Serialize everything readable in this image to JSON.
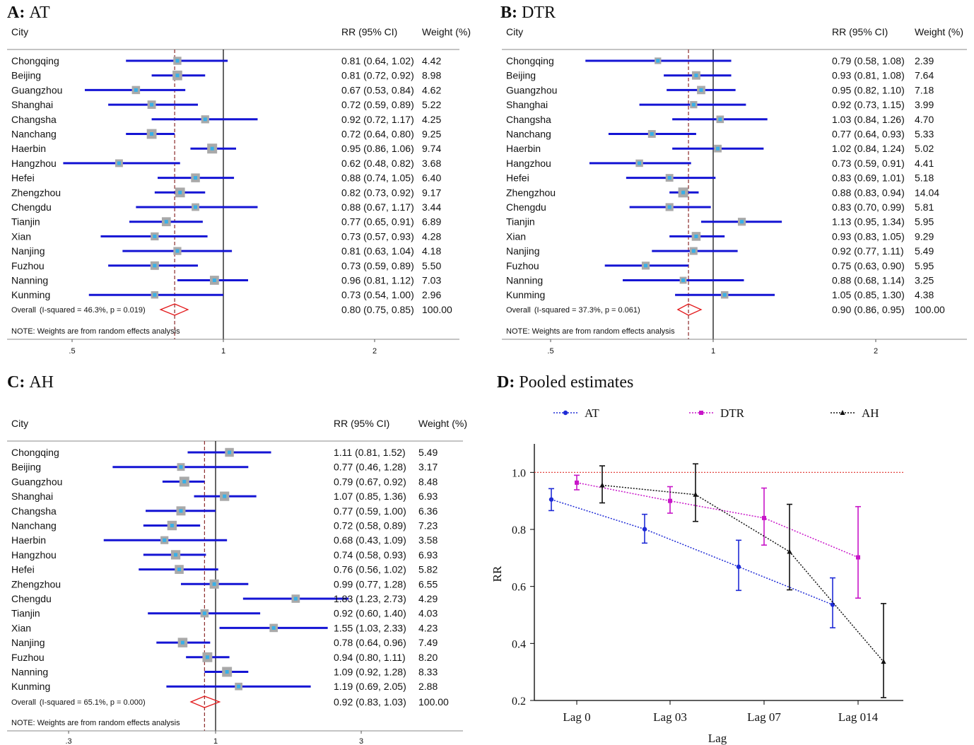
{
  "panels": [
    {
      "id": "A",
      "panel_letter": "A:",
      "panel_title": "AT",
      "col_city": "City",
      "col_rr": "RR (95% CI)",
      "col_weight": "Weight (%)",
      "axis_ticks": [
        {
          "value": 0.5,
          "label": ".5"
        },
        {
          "value": 1,
          "label": "1"
        },
        {
          "value": 2,
          "label": "2"
        }
      ],
      "note": "NOTE: Weights are from random effects analysis",
      "overall_label": "Overall",
      "overall_stats": "(I-squared = 46.3%, p = 0.019)",
      "overall_rr_text": "0.80 (0.75, 0.85)",
      "overall_weight": "100.00",
      "overall": {
        "rr": 0.8,
        "lo": 0.75,
        "hi": 0.85
      },
      "rows": [
        {
          "city": "Chongqing",
          "rr": 0.81,
          "lo": 0.64,
          "hi": 1.02,
          "rr_text": "0.81 (0.64, 1.02)",
          "weight": "4.42"
        },
        {
          "city": "Beijing",
          "rr": 0.81,
          "lo": 0.72,
          "hi": 0.92,
          "rr_text": "0.81 (0.72, 0.92)",
          "weight": "8.98"
        },
        {
          "city": "Guangzhou",
          "rr": 0.67,
          "lo": 0.53,
          "hi": 0.84,
          "rr_text": "0.67 (0.53, 0.84)",
          "weight": "4.62"
        },
        {
          "city": "Shanghai",
          "rr": 0.72,
          "lo": 0.59,
          "hi": 0.89,
          "rr_text": "0.72 (0.59, 0.89)",
          "weight": "5.22"
        },
        {
          "city": "Changsha",
          "rr": 0.92,
          "lo": 0.72,
          "hi": 1.17,
          "rr_text": "0.92 (0.72, 1.17)",
          "weight": "4.25"
        },
        {
          "city": "Nanchang",
          "rr": 0.72,
          "lo": 0.64,
          "hi": 0.8,
          "rr_text": "0.72 (0.64, 0.80)",
          "weight": "9.25"
        },
        {
          "city": "Haerbin",
          "rr": 0.95,
          "lo": 0.86,
          "hi": 1.06,
          "rr_text": "0.95 (0.86, 1.06)",
          "weight": "9.74"
        },
        {
          "city": "Hangzhou",
          "rr": 0.62,
          "lo": 0.48,
          "hi": 0.82,
          "rr_text": "0.62 (0.48, 0.82)",
          "weight": "3.68"
        },
        {
          "city": "Hefei",
          "rr": 0.88,
          "lo": 0.74,
          "hi": 1.05,
          "rr_text": "0.88 (0.74, 1.05)",
          "weight": "6.40"
        },
        {
          "city": "Zhengzhou",
          "rr": 0.82,
          "lo": 0.73,
          "hi": 0.92,
          "rr_text": "0.82 (0.73, 0.92)",
          "weight": "9.17"
        },
        {
          "city": "Chengdu",
          "rr": 0.88,
          "lo": 0.67,
          "hi": 1.17,
          "rr_text": "0.88 (0.67, 1.17)",
          "weight": "3.44"
        },
        {
          "city": "Tianjin",
          "rr": 0.77,
          "lo": 0.65,
          "hi": 0.91,
          "rr_text": "0.77 (0.65, 0.91)",
          "weight": "6.89"
        },
        {
          "city": "Xian",
          "rr": 0.73,
          "lo": 0.57,
          "hi": 0.93,
          "rr_text": "0.73 (0.57, 0.93)",
          "weight": "4.28"
        },
        {
          "city": "Nanjing",
          "rr": 0.81,
          "lo": 0.63,
          "hi": 1.04,
          "rr_text": "0.81 (0.63, 1.04)",
          "weight": "4.18"
        },
        {
          "city": "Fuzhou",
          "rr": 0.73,
          "lo": 0.59,
          "hi": 0.89,
          "rr_text": "0.73 (0.59, 0.89)",
          "weight": "5.50"
        },
        {
          "city": "Nanning",
          "rr": 0.96,
          "lo": 0.81,
          "hi": 1.12,
          "rr_text": "0.96 (0.81, 1.12)",
          "weight": "7.03"
        },
        {
          "city": "Kunming",
          "rr": 0.73,
          "lo": 0.54,
          "hi": 1.0,
          "rr_text": "0.73 (0.54, 1.00)",
          "weight": "2.96"
        }
      ]
    },
    {
      "id": "B",
      "panel_letter": "B:",
      "panel_title": "DTR",
      "col_city": "City",
      "col_rr": "RR (95% CI)",
      "col_weight": "Weight (%)",
      "axis_ticks": [
        {
          "value": 0.5,
          "label": ".5"
        },
        {
          "value": 1,
          "label": "1"
        },
        {
          "value": 2,
          "label": "2"
        }
      ],
      "note": "NOTE: Weights are from random effects analysis",
      "overall_label": "Overall",
      "overall_stats": "(I-squared = 37.3%, p = 0.061)",
      "overall_rr_text": "0.90 (0.86, 0.95)",
      "overall_weight": "100.00",
      "overall": {
        "rr": 0.9,
        "lo": 0.86,
        "hi": 0.95
      },
      "rows": [
        {
          "city": "Chongqing",
          "rr": 0.79,
          "lo": 0.58,
          "hi": 1.08,
          "rr_text": "0.79 (0.58, 1.08)",
          "weight": "2.39"
        },
        {
          "city": "Beijing",
          "rr": 0.93,
          "lo": 0.81,
          "hi": 1.08,
          "rr_text": "0.93 (0.81, 1.08)",
          "weight": "7.64"
        },
        {
          "city": "Guangzhou",
          "rr": 0.95,
          "lo": 0.82,
          "hi": 1.1,
          "rr_text": "0.95 (0.82, 1.10)",
          "weight": "7.18"
        },
        {
          "city": "Shanghai",
          "rr": 0.92,
          "lo": 0.73,
          "hi": 1.15,
          "rr_text": "0.92 (0.73, 1.15)",
          "weight": "3.99"
        },
        {
          "city": "Changsha",
          "rr": 1.03,
          "lo": 0.84,
          "hi": 1.26,
          "rr_text": "1.03 (0.84, 1.26)",
          "weight": "4.70"
        },
        {
          "city": "Nanchang",
          "rr": 0.77,
          "lo": 0.64,
          "hi": 0.93,
          "rr_text": "0.77 (0.64, 0.93)",
          "weight": "5.33"
        },
        {
          "city": "Haerbin",
          "rr": 1.02,
          "lo": 0.84,
          "hi": 1.24,
          "rr_text": "1.02 (0.84, 1.24)",
          "weight": "5.02"
        },
        {
          "city": "Hangzhou",
          "rr": 0.73,
          "lo": 0.59,
          "hi": 0.91,
          "rr_text": "0.73 (0.59, 0.91)",
          "weight": "4.41"
        },
        {
          "city": "Hefei",
          "rr": 0.83,
          "lo": 0.69,
          "hi": 1.01,
          "rr_text": "0.83 (0.69, 1.01)",
          "weight": "5.18"
        },
        {
          "city": "Zhengzhou",
          "rr": 0.88,
          "lo": 0.83,
          "hi": 0.94,
          "rr_text": "0.88 (0.83, 0.94)",
          "weight": "14.04"
        },
        {
          "city": "Chengdu",
          "rr": 0.83,
          "lo": 0.7,
          "hi": 0.99,
          "rr_text": "0.83 (0.70, 0.99)",
          "weight": "5.81"
        },
        {
          "city": "Tianjin",
          "rr": 1.13,
          "lo": 0.95,
          "hi": 1.34,
          "rr_text": "1.13 (0.95, 1.34)",
          "weight": "5.95"
        },
        {
          "city": "Xian",
          "rr": 0.93,
          "lo": 0.83,
          "hi": 1.05,
          "rr_text": "0.93 (0.83, 1.05)",
          "weight": "9.29"
        },
        {
          "city": "Nanjing",
          "rr": 0.92,
          "lo": 0.77,
          "hi": 1.11,
          "rr_text": "0.92 (0.77, 1.11)",
          "weight": "5.49"
        },
        {
          "city": "Fuzhou",
          "rr": 0.75,
          "lo": 0.63,
          "hi": 0.9,
          "rr_text": "0.75 (0.63, 0.90)",
          "weight": "5.95"
        },
        {
          "city": "Nanning",
          "rr": 0.88,
          "lo": 0.68,
          "hi": 1.14,
          "rr_text": "0.88 (0.68, 1.14)",
          "weight": "3.25"
        },
        {
          "city": "Kunming",
          "rr": 1.05,
          "lo": 0.85,
          "hi": 1.3,
          "rr_text": "1.05 (0.85, 1.30)",
          "weight": "4.38"
        }
      ]
    },
    {
      "id": "C",
      "panel_letter": "C:",
      "panel_title": "AH",
      "col_city": "City",
      "col_rr": "RR (95% CI)",
      "col_weight": "Weight (%)",
      "axis_ticks": [
        {
          "value": 0.33,
          "label": ".3"
        },
        {
          "value": 1,
          "label": "1"
        },
        {
          "value": 3,
          "label": "3"
        }
      ],
      "note": "NOTE: Weights are from random effects analysis",
      "overall_label": "Overall",
      "overall_stats": "(I-squared = 65.1%, p = 0.000)",
      "overall_rr_text": "0.92 (0.83, 1.03)",
      "overall_weight": "100.00",
      "overall": {
        "rr": 0.92,
        "lo": 0.83,
        "hi": 1.03
      },
      "rows": [
        {
          "city": "Chongqing",
          "rr": 1.11,
          "lo": 0.81,
          "hi": 1.52,
          "rr_text": "1.11 (0.81, 1.52)",
          "weight": "5.49"
        },
        {
          "city": "Beijing",
          "rr": 0.77,
          "lo": 0.46,
          "hi": 1.28,
          "rr_text": "0.77 (0.46, 1.28)",
          "weight": "3.17"
        },
        {
          "city": "Guangzhou",
          "rr": 0.79,
          "lo": 0.67,
          "hi": 0.92,
          "rr_text": "0.79 (0.67, 0.92)",
          "weight": "8.48"
        },
        {
          "city": "Shanghai",
          "rr": 1.07,
          "lo": 0.85,
          "hi": 1.36,
          "rr_text": "1.07 (0.85, 1.36)",
          "weight": "6.93"
        },
        {
          "city": "Changsha",
          "rr": 0.77,
          "lo": 0.59,
          "hi": 1.0,
          "rr_text": "0.77 (0.59, 1.00)",
          "weight": "6.36"
        },
        {
          "city": "Nanchang",
          "rr": 0.72,
          "lo": 0.58,
          "hi": 0.89,
          "rr_text": "0.72 (0.58, 0.89)",
          "weight": "7.23"
        },
        {
          "city": "Haerbin",
          "rr": 0.68,
          "lo": 0.43,
          "hi": 1.09,
          "rr_text": "0.68 (0.43, 1.09)",
          "weight": "3.58"
        },
        {
          "city": "Hangzhou",
          "rr": 0.74,
          "lo": 0.58,
          "hi": 0.93,
          "rr_text": "0.74 (0.58, 0.93)",
          "weight": "6.93"
        },
        {
          "city": "Hefei",
          "rr": 0.76,
          "lo": 0.56,
          "hi": 1.02,
          "rr_text": "0.76 (0.56, 1.02)",
          "weight": "5.82"
        },
        {
          "city": "Zhengzhou",
          "rr": 0.99,
          "lo": 0.77,
          "hi": 1.28,
          "rr_text": "0.99 (0.77, 1.28)",
          "weight": "6.55"
        },
        {
          "city": "Chengdu",
          "rr": 1.83,
          "lo": 1.23,
          "hi": 2.73,
          "rr_text": "1.83 (1.23, 2.73)",
          "weight": "4.29"
        },
        {
          "city": "Tianjin",
          "rr": 0.92,
          "lo": 0.6,
          "hi": 1.4,
          "rr_text": "0.92 (0.60, 1.40)",
          "weight": "4.03"
        },
        {
          "city": "Xian",
          "rr": 1.55,
          "lo": 1.03,
          "hi": 2.33,
          "rr_text": "1.55 (1.03, 2.33)",
          "weight": "4.23"
        },
        {
          "city": "Nanjing",
          "rr": 0.78,
          "lo": 0.64,
          "hi": 0.96,
          "rr_text": "0.78 (0.64, 0.96)",
          "weight": "7.49"
        },
        {
          "city": "Fuzhou",
          "rr": 0.94,
          "lo": 0.8,
          "hi": 1.11,
          "rr_text": "0.94 (0.80, 1.11)",
          "weight": "8.20"
        },
        {
          "city": "Nanning",
          "rr": 1.09,
          "lo": 0.92,
          "hi": 1.28,
          "rr_text": "1.09 (0.92, 1.28)",
          "weight": "8.33"
        },
        {
          "city": "Kunming",
          "rr": 1.19,
          "lo": 0.69,
          "hi": 2.05,
          "rr_text": "1.19 (0.69, 2.05)",
          "weight": "2.88"
        }
      ]
    }
  ],
  "pooled": {
    "panel_letter": "D:",
    "panel_title": "Pooled estimates",
    "legend": [
      {
        "name": "AT",
        "color": "#1f2bd6",
        "marker": "circle"
      },
      {
        "name": "DTR",
        "color": "#c815c8",
        "marker": "square"
      },
      {
        "name": "AH",
        "color": "#111111",
        "marker": "triangle"
      }
    ]
  },
  "chart_data": [
    {
      "type": "forest",
      "title": "A: AT",
      "scale": "log",
      "reference_line": 1,
      "columns": [
        "City",
        "RR (95% CI)",
        "Weight (%)"
      ],
      "categories": [
        "Chongqing",
        "Beijing",
        "Guangzhou",
        "Shanghai",
        "Changsha",
        "Nanchang",
        "Haerbin",
        "Hangzhou",
        "Hefei",
        "Zhengzhou",
        "Chengdu",
        "Tianjin",
        "Xian",
        "Nanjing",
        "Fuzhou",
        "Nanning",
        "Kunming"
      ],
      "rr": [
        0.81,
        0.81,
        0.67,
        0.72,
        0.92,
        0.72,
        0.95,
        0.62,
        0.88,
        0.82,
        0.88,
        0.77,
        0.73,
        0.81,
        0.73,
        0.96,
        0.73
      ],
      "overall": {
        "rr": 0.8,
        "lo": 0.75,
        "hi": 0.85
      }
    },
    {
      "type": "forest",
      "title": "B: DTR",
      "scale": "log",
      "reference_line": 1,
      "categories": [
        "Chongqing",
        "Beijing",
        "Guangzhou",
        "Shanghai",
        "Changsha",
        "Nanchang",
        "Haerbin",
        "Hangzhou",
        "Hefei",
        "Zhengzhou",
        "Chengdu",
        "Tianjin",
        "Xian",
        "Nanjing",
        "Fuzhou",
        "Nanning",
        "Kunming"
      ],
      "rr": [
        0.79,
        0.93,
        0.95,
        0.92,
        1.03,
        0.77,
        1.02,
        0.73,
        0.83,
        0.88,
        0.83,
        1.13,
        0.93,
        0.92,
        0.75,
        0.88,
        1.05
      ],
      "overall": {
        "rr": 0.9,
        "lo": 0.86,
        "hi": 0.95
      }
    },
    {
      "type": "forest",
      "title": "C: AH",
      "scale": "log",
      "reference_line": 1,
      "categories": [
        "Chongqing",
        "Beijing",
        "Guangzhou",
        "Shanghai",
        "Changsha",
        "Nanchang",
        "Haerbin",
        "Hangzhou",
        "Hefei",
        "Zhengzhou",
        "Chengdu",
        "Tianjin",
        "Xian",
        "Nanjing",
        "Fuzhou",
        "Nanning",
        "Kunming"
      ],
      "rr": [
        1.11,
        0.77,
        0.79,
        1.07,
        0.77,
        0.72,
        0.68,
        0.74,
        0.76,
        0.99,
        1.83,
        0.92,
        1.55,
        0.78,
        0.94,
        1.09,
        1.19
      ],
      "overall": {
        "rr": 0.92,
        "lo": 0.83,
        "hi": 1.03
      }
    },
    {
      "type": "line",
      "title": "D: Pooled estimates",
      "xlabel": "Lag",
      "ylabel": "RR",
      "categories": [
        "Lag 0",
        "Lag 03",
        "Lag 07",
        "Lag 014"
      ],
      "ylim": [
        0.2,
        1.1
      ],
      "yticks": [
        "0.2",
        "0.4",
        "0.6",
        "0.8",
        "1.0"
      ],
      "reference_line": 1.0,
      "series": [
        {
          "name": "AT",
          "values": [
            0.905,
            0.801,
            0.669,
            0.536
          ],
          "lower": [
            0.866,
            0.752,
            0.586,
            0.455
          ],
          "upper": [
            0.943,
            0.853,
            0.762,
            0.63
          ]
        },
        {
          "name": "DTR",
          "values": [
            0.964,
            0.9,
            0.84,
            0.702
          ],
          "lower": [
            0.939,
            0.857,
            0.745,
            0.559
          ],
          "upper": [
            0.99,
            0.95,
            0.945,
            0.88
          ]
        },
        {
          "name": "AH",
          "values": [
            0.955,
            0.922,
            0.722,
            0.336
          ],
          "lower": [
            0.893,
            0.828,
            0.588,
            0.21
          ],
          "upper": [
            1.023,
            1.03,
            0.888,
            0.54
          ]
        }
      ]
    }
  ]
}
